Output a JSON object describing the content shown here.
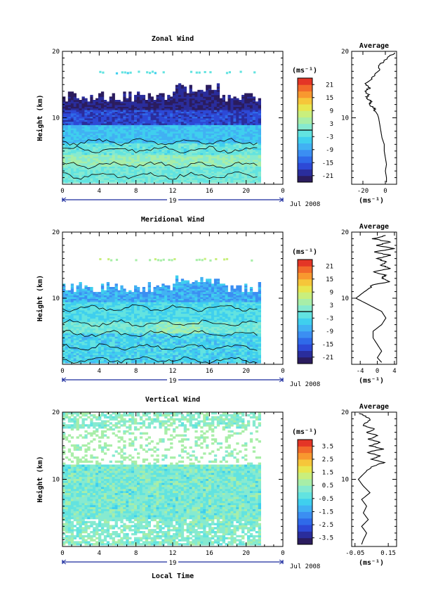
{
  "chart_data": [
    {
      "type": "heatmap",
      "title": "Zonal Wind",
      "ylabel": "Height (km)",
      "xlim": [
        0,
        24
      ],
      "ylim": [
        0,
        20
      ],
      "x_ticks": [
        "0",
        "4",
        "8",
        "12",
        "16",
        "20",
        "0"
      ],
      "y_ticks": [
        "10",
        "20"
      ],
      "date_label": "19",
      "month_label": "Jul 2008",
      "colorbar": {
        "unit": "(ms⁻¹)",
        "ticks": [
          "21",
          "15",
          "9",
          "3",
          "-3",
          "-9",
          "-15",
          "-21"
        ],
        "range": [
          -24,
          24
        ],
        "zero_line": 0
      },
      "profile": {
        "title": "Average",
        "xlabel": "(ms⁻¹)",
        "x_ticks": [
          "-20",
          "0"
        ],
        "xlim": [
          -30,
          10
        ],
        "height": [
          19.8,
          19.0,
          18.0,
          17.0,
          16.0,
          15.0,
          14.5,
          14.0,
          13.5,
          13.0,
          12.5,
          12.0,
          11.5,
          11.0,
          10.5,
          10.0,
          9.0,
          8.0,
          7.0,
          6.0,
          5.0,
          4.0,
          3.0,
          2.0,
          1.0,
          0.3
        ],
        "values": [
          8,
          2,
          -5,
          -6,
          -12,
          -18,
          -14,
          -18,
          -15,
          -17,
          -13,
          -14,
          -10,
          -9,
          -7,
          -6,
          -5,
          -4,
          -3,
          -1,
          -1,
          0,
          1,
          0,
          1,
          1
        ]
      }
    },
    {
      "type": "heatmap",
      "title": "Meridional Wind",
      "ylabel": "Height (km)",
      "xlim": [
        0,
        24
      ],
      "ylim": [
        0,
        20
      ],
      "x_ticks": [
        "0",
        "4",
        "8",
        "12",
        "16",
        "20",
        "0"
      ],
      "y_ticks": [
        "10",
        "20"
      ],
      "date_label": "19",
      "month_label": "Jul 2008",
      "colorbar": {
        "unit": "(ms⁻¹)",
        "ticks": [
          "21",
          "15",
          "9",
          "3",
          "-3",
          "-9",
          "-15",
          "-21"
        ],
        "range": [
          -24,
          24
        ],
        "zero_line": 0
      },
      "profile": {
        "title": "Average",
        "xlabel": "(ms⁻¹)",
        "x_ticks": [
          "-4",
          "0",
          "4"
        ],
        "xlim": [
          -6,
          4.5
        ],
        "height": [
          19.5,
          19.0,
          18.5,
          18.0,
          17.5,
          17.0,
          16.5,
          16.0,
          15.5,
          15.0,
          14.5,
          14.0,
          13.5,
          13.0,
          12.5,
          12.0,
          11.0,
          10.0,
          9.0,
          8.0,
          7.0,
          6.0,
          5.0,
          4.0,
          3.0,
          2.0,
          1.0,
          0.3
        ],
        "values": [
          2,
          -1,
          3,
          0,
          4,
          -1,
          3,
          0,
          2,
          1,
          3,
          -1,
          2,
          1,
          3,
          -1,
          -3,
          -5,
          -2,
          1,
          2,
          1,
          -1,
          -1,
          0,
          1,
          0,
          1
        ]
      }
    },
    {
      "type": "heatmap",
      "title": "Vertical Wind",
      "ylabel": "Height (km)",
      "xlabel": "Local Time",
      "xlim": [
        0,
        24
      ],
      "ylim": [
        0,
        20
      ],
      "x_ticks": [
        "0",
        "4",
        "8",
        "12",
        "16",
        "20",
        "0"
      ],
      "y_ticks": [
        "10",
        "20"
      ],
      "date_label": "19",
      "month_label": "Jul 2008",
      "colorbar": {
        "unit": "(ms⁻¹)",
        "ticks": [
          "3.5",
          "2.5",
          "1.5",
          "0.5",
          "-0.5",
          "-1.5",
          "-2.5",
          "-3.5"
        ],
        "range": [
          -4,
          4
        ]
      },
      "profile": {
        "title": "Average",
        "xlabel": "(ms⁻¹)",
        "x_ticks": [
          "-0.05",
          "0.15"
        ],
        "xlim": [
          -0.07,
          0.2
        ],
        "height": [
          19.8,
          19.0,
          18.0,
          17.5,
          17.0,
          16.5,
          16.0,
          15.5,
          15.0,
          14.5,
          14.0,
          13.5,
          13.0,
          12.5,
          12.0,
          11.0,
          10.0,
          9.0,
          8.0,
          7.0,
          6.0,
          5.0,
          4.0,
          3.0,
          2.0,
          1.0,
          0.3
        ],
        "values": [
          -0.02,
          0.04,
          0.0,
          0.07,
          0.02,
          0.09,
          0.03,
          0.1,
          0.04,
          0.12,
          0.02,
          0.1,
          0.05,
          0.13,
          0.06,
          0.01,
          -0.03,
          0.0,
          0.04,
          -0.01,
          0.02,
          0.0,
          0.03,
          -0.01,
          0.02,
          0.0,
          -0.01
        ]
      }
    }
  ]
}
